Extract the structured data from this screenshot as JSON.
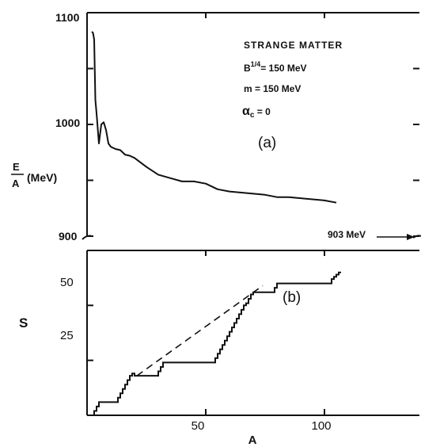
{
  "chart_data": [
    {
      "panel": "(a)",
      "type": "line",
      "xlim": [
        0,
        140
      ],
      "ylim": [
        900,
        1100
      ],
      "ylabel_top": "E",
      "ylabel_bottom": "A",
      "ylabel_unit": "(MeV)",
      "yticks": [
        {
          "value": 1100,
          "label": "1100"
        },
        {
          "value": 1000,
          "label": "1000"
        },
        {
          "value": 900,
          "label": "900"
        }
      ],
      "annotation_lines": [
        "STRANGE MATTER",
        "B",
        "1/4",
        "= 150 MeV",
        "m = 150 MeV",
        "α",
        "c",
        " = 0"
      ],
      "arrow_label": "903 MeV",
      "x": [
        2,
        2.5,
        3,
        3.5,
        4,
        5,
        6,
        7,
        8,
        9,
        10,
        11,
        12,
        14,
        16,
        18,
        20,
        25,
        30,
        35,
        40,
        45,
        50,
        55,
        60,
        65,
        70,
        75,
        80,
        85,
        90,
        95,
        100,
        105
      ],
      "y": [
        1083,
        1082,
        1076,
        1022,
        1010,
        983,
        1000,
        1002,
        995,
        983,
        980,
        979,
        978,
        977,
        973,
        972,
        970,
        962,
        955,
        952,
        949,
        949,
        947,
        942,
        940,
        939,
        938,
        937,
        935,
        935,
        934,
        933,
        932,
        930
      ]
    },
    {
      "panel": "(b)",
      "type": "line",
      "xlabel": "A",
      "ylabel": "S",
      "xlim": [
        0,
        140
      ],
      "ylim": [
        0,
        75
      ],
      "xticks": [
        {
          "value": 50,
          "label": "50"
        },
        {
          "value": 100,
          "label": "100"
        }
      ],
      "yticks": [
        {
          "value": 25,
          "label": "25"
        },
        {
          "value": 50,
          "label": "50"
        }
      ],
      "series": [
        {
          "style": "solid",
          "x": [
            2,
            3,
            3,
            4,
            4,
            5,
            5,
            13,
            13,
            14,
            14,
            15,
            15,
            16,
            16,
            17,
            17,
            18,
            18,
            19,
            19,
            20,
            20,
            30,
            30,
            31,
            31,
            32,
            32,
            33,
            33,
            54,
            54,
            55,
            55,
            56,
            56,
            57,
            57,
            58,
            58,
            59,
            59,
            60,
            60,
            61,
            61,
            62,
            62,
            63,
            63,
            64,
            64,
            65,
            65,
            66,
            66,
            67,
            67,
            68,
            68,
            69,
            69,
            70,
            70,
            71,
            71,
            72,
            72,
            79,
            79,
            80,
            80,
            81,
            81,
            82,
            82,
            103,
            103,
            104,
            104,
            105,
            105,
            106,
            106,
            107
          ],
          "y": [
            0,
            0,
            2,
            2,
            4,
            4,
            6,
            6,
            8,
            8,
            10,
            10,
            12,
            12,
            14,
            14,
            16,
            16,
            18,
            18,
            19,
            19,
            18,
            18,
            20,
            20,
            22,
            22,
            24,
            24,
            24,
            24,
            26,
            26,
            28,
            28,
            30,
            30,
            32,
            32,
            34,
            34,
            36,
            36,
            38,
            38,
            40,
            40,
            42,
            42,
            44,
            44,
            46,
            46,
            48,
            48,
            50,
            50,
            51,
            51,
            53,
            53,
            55,
            55,
            56,
            56,
            56,
            56,
            56,
            56,
            58,
            58,
            60,
            60,
            60,
            60,
            60,
            60,
            62,
            62,
            63,
            63,
            64,
            64,
            65,
            65
          ]
        },
        {
          "style": "dashed",
          "x": [
            21,
            74
          ],
          "y": [
            18,
            59
          ]
        }
      ]
    }
  ]
}
